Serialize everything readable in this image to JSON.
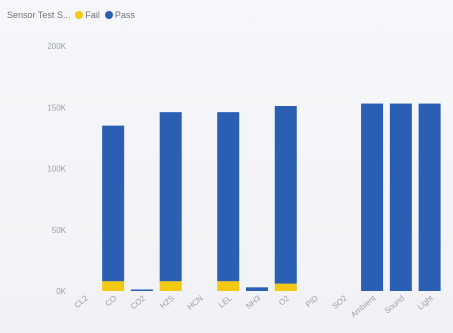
{
  "chart_data": {
    "type": "bar",
    "stacked": true,
    "title": "Sensor Test S...",
    "categories": [
      "CL2",
      "CO",
      "CO2",
      "H2S",
      "HCN",
      "LEL",
      "NH3",
      "O2",
      "PID",
      "SO2",
      "Ambient",
      "Sound",
      "Light"
    ],
    "series": [
      {
        "name": "Fail",
        "color": "#f2c811",
        "values": [
          0,
          8000,
          0,
          8000,
          0,
          8000,
          0,
          6000,
          0,
          0,
          0,
          0,
          0
        ]
      },
      {
        "name": "Pass",
        "color": "#2b5fb4",
        "values": [
          0,
          127000,
          1000,
          138000,
          0,
          138000,
          3000,
          145000,
          0,
          0,
          153000,
          153000,
          153000
        ]
      }
    ],
    "ylim": [
      0,
      200000
    ],
    "yticks": [
      {
        "value": 0,
        "label": "0K"
      },
      {
        "value": 50000,
        "label": "50K"
      },
      {
        "value": 100000,
        "label": "100K"
      },
      {
        "value": 150000,
        "label": "150K"
      },
      {
        "value": 200000,
        "label": "200K"
      }
    ],
    "legend_position": "top",
    "grid": false
  }
}
